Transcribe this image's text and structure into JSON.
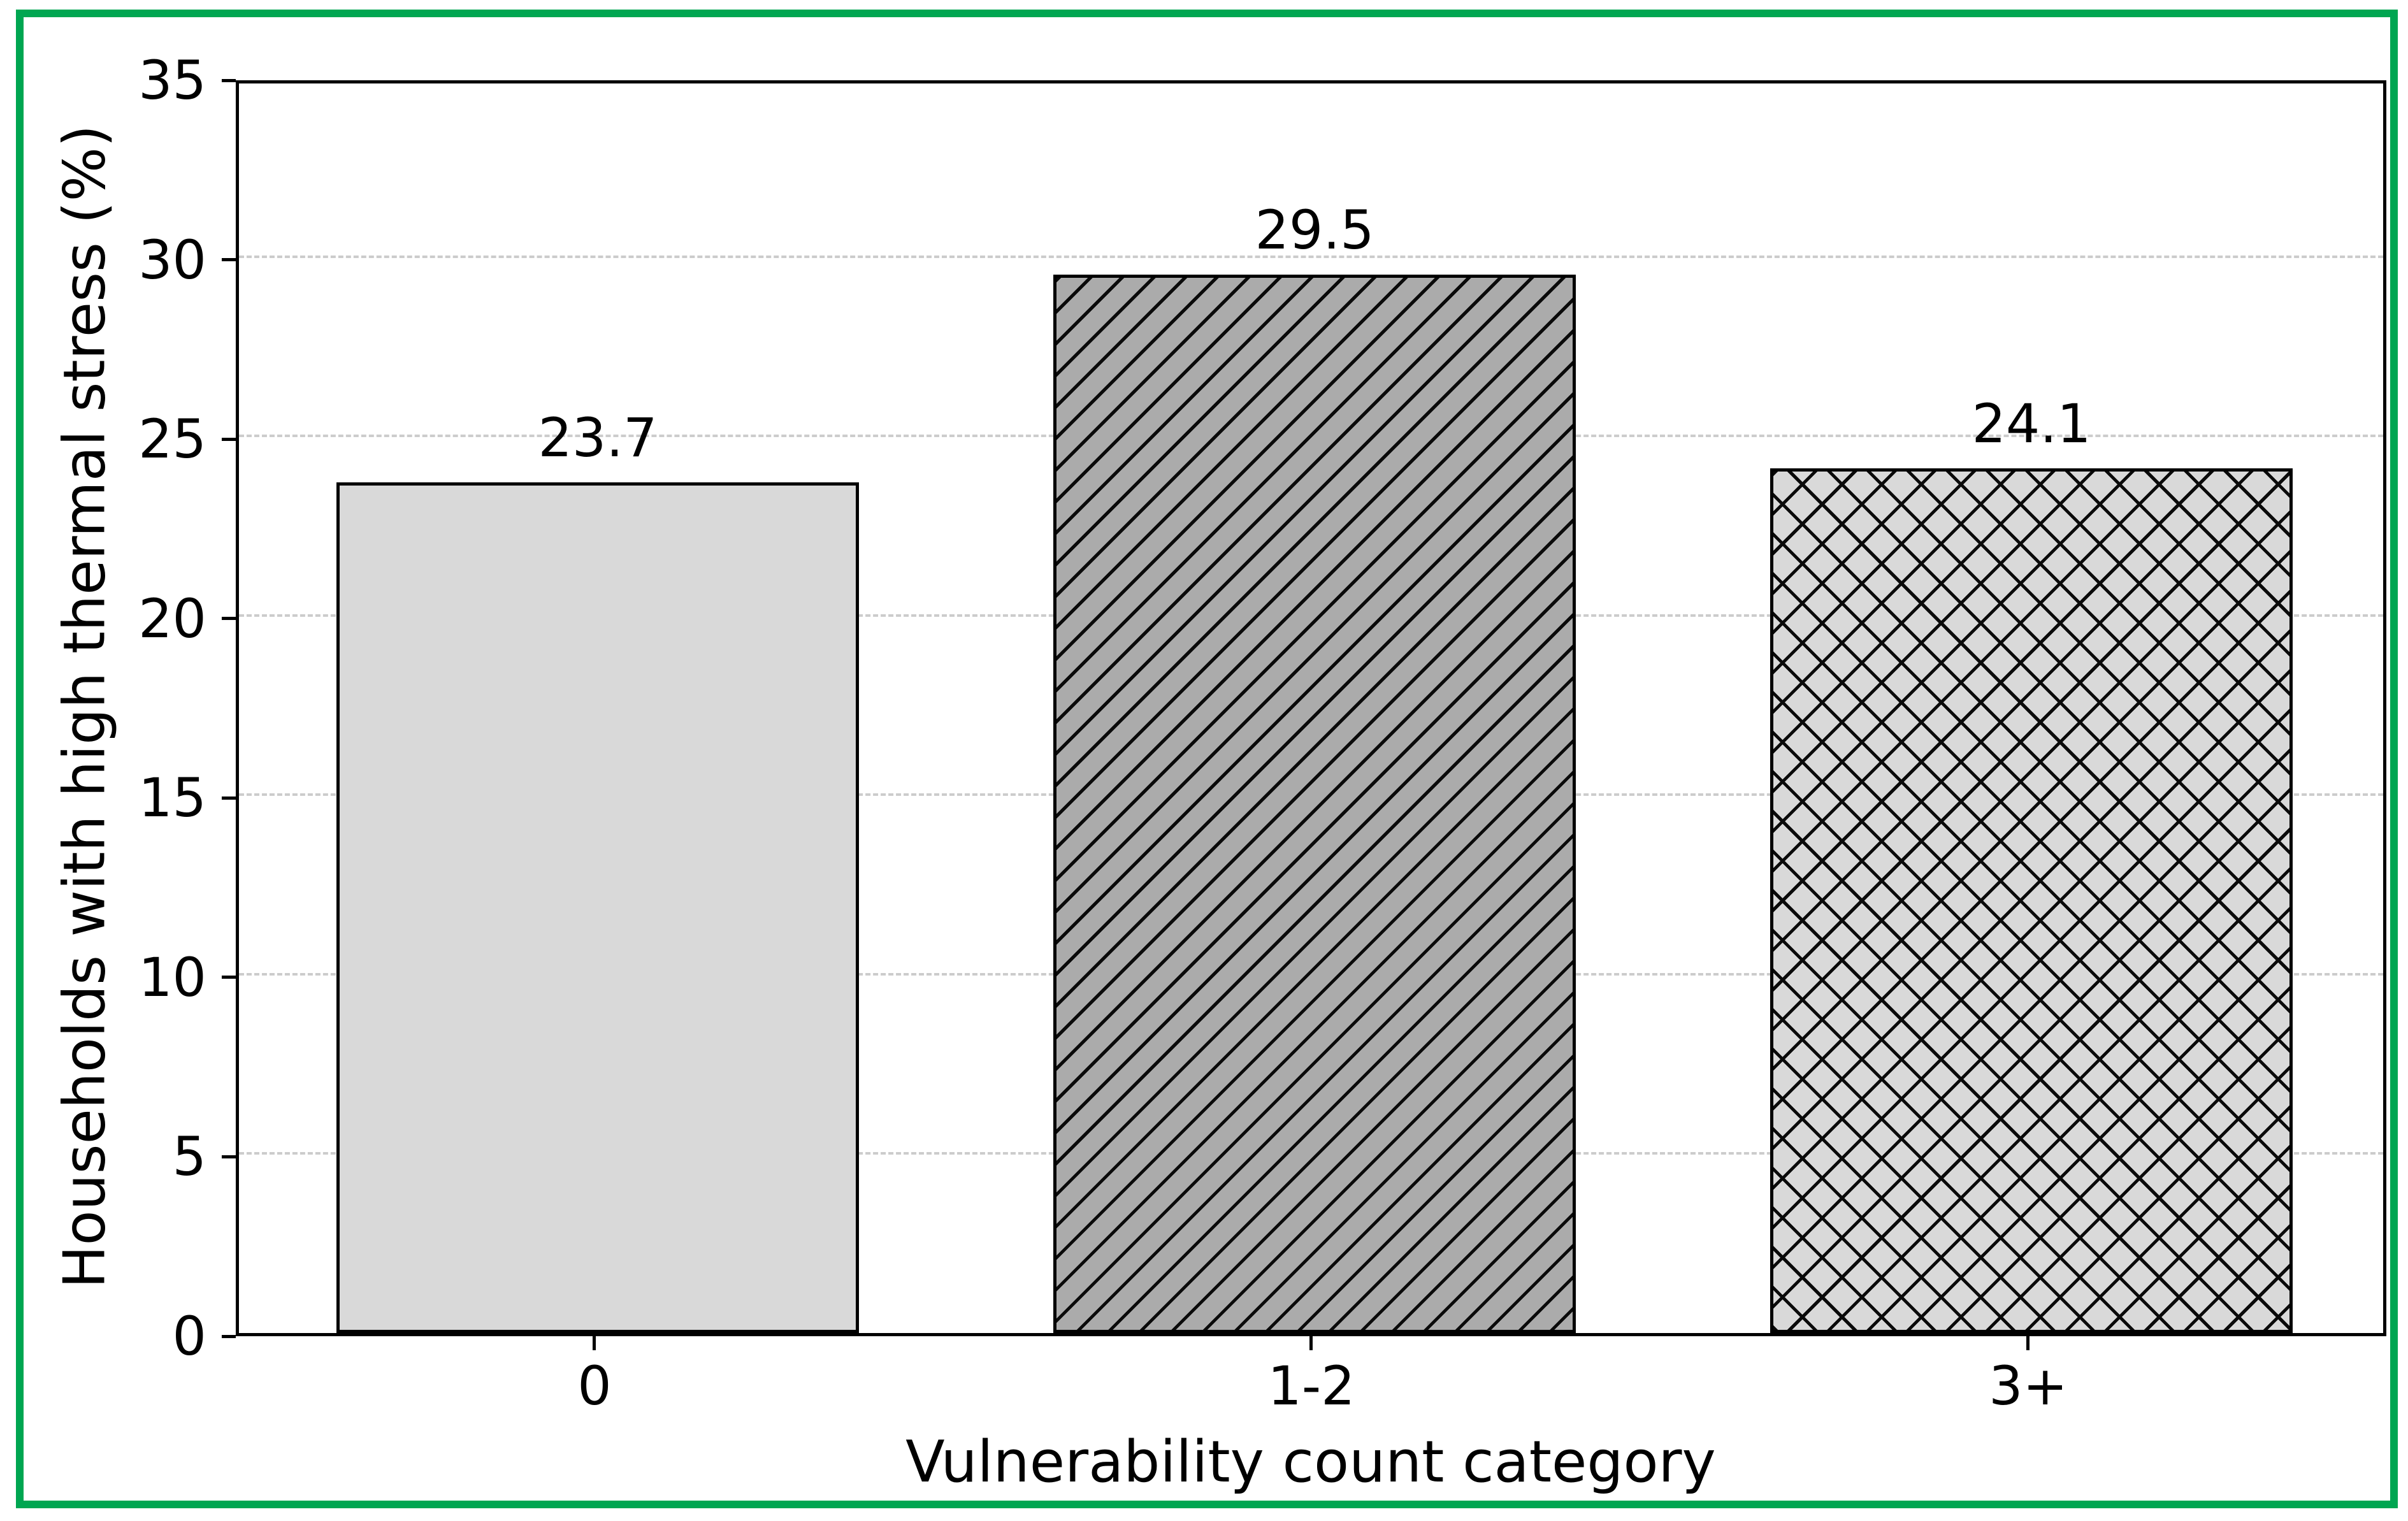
{
  "chart_data": {
    "type": "bar",
    "title": "",
    "xlabel": "Vulnerability count category",
    "ylabel": "Households with high thermal stress (%)",
    "categories": [
      "0",
      "1-2",
      "3+"
    ],
    "values": [
      23.7,
      29.5,
      24.1
    ],
    "value_labels": [
      "23.7",
      "29.5",
      "24.1"
    ],
    "ylim": [
      0,
      35
    ],
    "yticks": [
      0,
      5,
      10,
      15,
      20,
      25,
      30,
      35
    ],
    "grid": "horizontal-dashed",
    "legend_position": "none",
    "bars": [
      {
        "category": "0",
        "value": 23.7,
        "fill": "#d9d9d9",
        "hatch": "none"
      },
      {
        "category": "1-2",
        "value": 29.5,
        "fill": "#ababab",
        "hatch": "diagonal"
      },
      {
        "category": "3+",
        "value": 24.1,
        "fill": "#d9d9d9",
        "hatch": "cross"
      }
    ],
    "colors": {
      "figure_border": "#00a651",
      "bar_edge": "#000000",
      "grid_color": "#cccccc",
      "text_color": "#000000",
      "background": "#ffffff"
    }
  }
}
